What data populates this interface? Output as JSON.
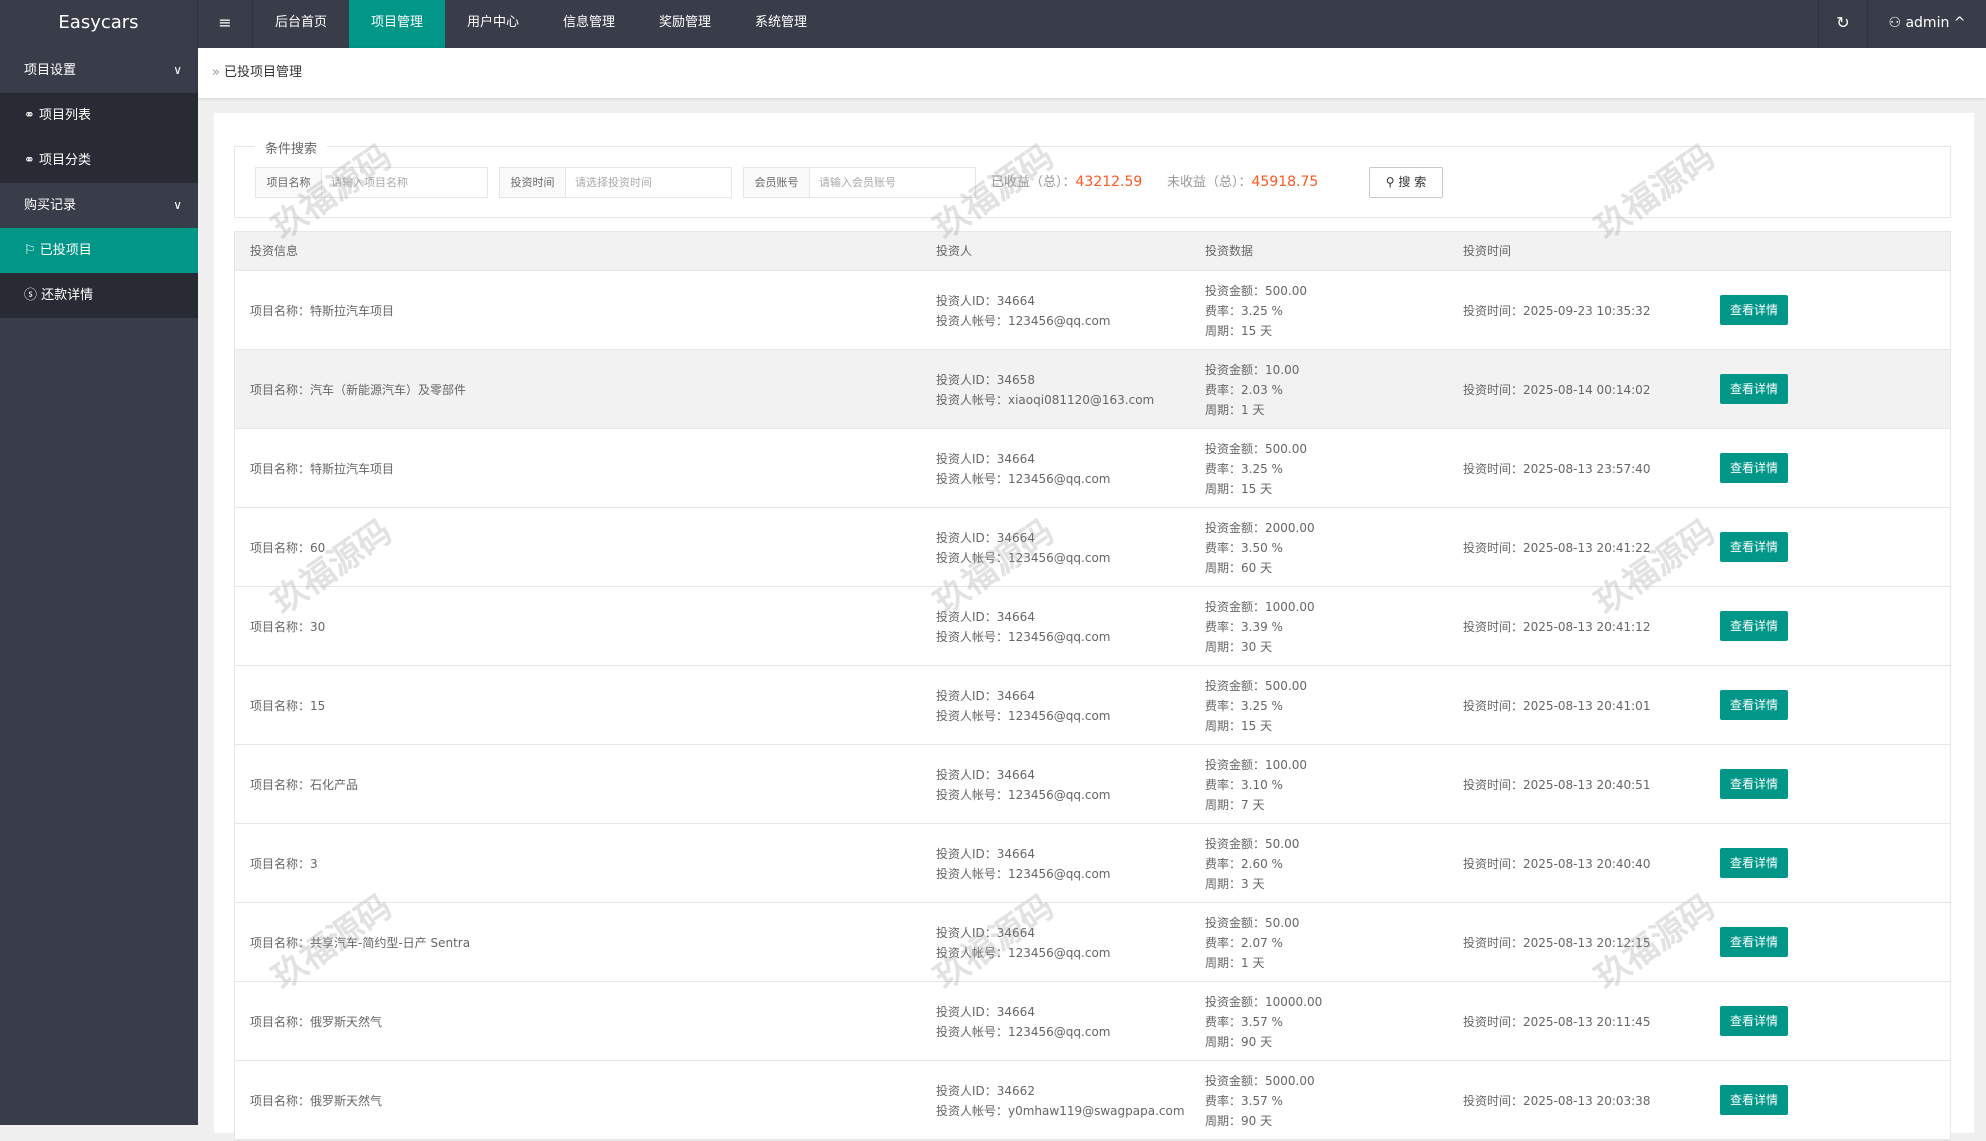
{
  "header": {
    "logo": "Easycars",
    "menu_icon": "≡",
    "nav": [
      "后台首页",
      "项目管理",
      "用户中心",
      "信息管理",
      "奖励管理",
      "系统管理"
    ],
    "active_nav": 1,
    "refresh_icon": "↻",
    "user": "admin"
  },
  "sidebar": {
    "groups": [
      {
        "label": "项目设置",
        "items": [
          {
            "icon": "link-icon",
            "label": "项目列表"
          },
          {
            "icon": "link-icon",
            "label": "项目分类"
          }
        ]
      },
      {
        "label": "购买记录",
        "items": [
          {
            "icon": "flag-icon",
            "label": "已投项目",
            "active": true
          },
          {
            "icon": "dollar-icon",
            "label": "还款详情"
          }
        ]
      }
    ]
  },
  "breadcrumb": "已投项目管理",
  "search": {
    "legend": "条件搜索",
    "fields": [
      {
        "label": "项目名称",
        "placeholder": "请输入项目名称"
      },
      {
        "label": "投资时间",
        "placeholder": "请选择投资时间"
      },
      {
        "label": "会员账号",
        "placeholder": "请输入会员账号"
      }
    ],
    "earned_label": "已收益（总）：",
    "earned_value": "43212.59",
    "unearned_label": "未收益（总）：",
    "unearned_value": "45918.75",
    "button": "搜 索",
    "value_color": "#ff5722"
  },
  "table": {
    "headers": [
      "投资信息",
      "投资人",
      "投资数据",
      "投资时间"
    ],
    "button": "查看详情",
    "rows": [
      {
        "name": "项目名称：特斯拉汽车项目",
        "id": "投资人ID：34664",
        "acct": "投资人帐号：123456@qq.com",
        "amount": "投资金额：500.00",
        "rate": "费率：3.25 %",
        "period": "周期：15 天",
        "time": "投资时间：2025-09-23 10:35:32"
      },
      {
        "name": "项目名称：汽车（新能源汽车）及零部件",
        "id": "投资人ID：34658",
        "acct": "投资人帐号：xiaoqi081120@163.com",
        "amount": "投资金额：10.00",
        "rate": "费率：2.03 %",
        "period": "周期：1 天",
        "time": "投资时间：2025-08-14 00:14:02"
      },
      {
        "name": "项目名称：特斯拉汽车项目",
        "id": "投资人ID：34664",
        "acct": "投资人帐号：123456@qq.com",
        "amount": "投资金额：500.00",
        "rate": "费率：3.25 %",
        "period": "周期：15 天",
        "time": "投资时间：2025-08-13 23:57:40"
      },
      {
        "name": "项目名称：60",
        "id": "投资人ID：34664",
        "acct": "投资人帐号：123456@qq.com",
        "amount": "投资金额：2000.00",
        "rate": "费率：3.50 %",
        "period": "周期：60 天",
        "time": "投资时间：2025-08-13 20:41:22"
      },
      {
        "name": "项目名称：30",
        "id": "投资人ID：34664",
        "acct": "投资人帐号：123456@qq.com",
        "amount": "投资金额：1000.00",
        "rate": "费率：3.39 %",
        "period": "周期：30 天",
        "time": "投资时间：2025-08-13 20:41:12"
      },
      {
        "name": "项目名称：15",
        "id": "投资人ID：34664",
        "acct": "投资人帐号：123456@qq.com",
        "amount": "投资金额：500.00",
        "rate": "费率：3.25 %",
        "period": "周期：15 天",
        "time": "投资时间：2025-08-13 20:41:01"
      },
      {
        "name": "项目名称：石化产品",
        "id": "投资人ID：34664",
        "acct": "投资人帐号：123456@qq.com",
        "amount": "投资金额：100.00",
        "rate": "费率：3.10 %",
        "period": "周期：7 天",
        "time": "投资时间：2025-08-13 20:40:51"
      },
      {
        "name": "项目名称：3",
        "id": "投资人ID：34664",
        "acct": "投资人帐号：123456@qq.com",
        "amount": "投资金额：50.00",
        "rate": "费率：2.60 %",
        "period": "周期：3 天",
        "time": "投资时间：2025-08-13 20:40:40"
      },
      {
        "name": "项目名称：共享汽车-简约型-日产 Sentra",
        "id": "投资人ID：34664",
        "acct": "投资人帐号：123456@qq.com",
        "amount": "投资金额：50.00",
        "rate": "费率：2.07 %",
        "period": "周期：1 天",
        "time": "投资时间：2025-08-13 20:12:15"
      },
      {
        "name": "项目名称：俄罗斯天然气",
        "id": "投资人ID：34664",
        "acct": "投资人帐号：123456@qq.com",
        "amount": "投资金额：10000.00",
        "rate": "费率：3.57 %",
        "period": "周期：90 天",
        "time": "投资时间：2025-08-13 20:11:45"
      },
      {
        "name": "项目名称：俄罗斯天然气",
        "id": "投资人ID：34662",
        "acct": "投资人帐号：y0mhaw119@swagpapa.com",
        "amount": "投资金额：5000.00",
        "rate": "费率：3.57 %",
        "period": "周期：90 天",
        "time": "投资时间：2025-08-13 20:03:38"
      }
    ]
  },
  "watermark": "玖福源码",
  "colors": {
    "accent": "#009688",
    "header_bg": "#393d49",
    "sidebar_sub_bg": "#282b33"
  }
}
